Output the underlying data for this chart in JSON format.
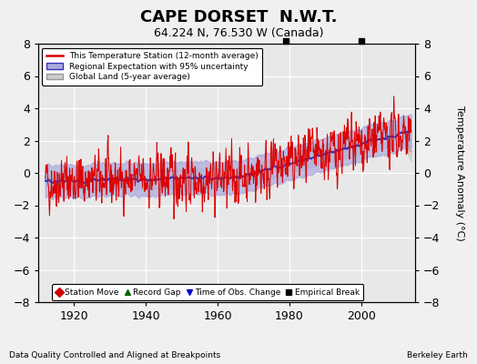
{
  "title": "CAPE DORSET  N.W.T.",
  "subtitle": "64.224 N, 76.530 W (Canada)",
  "xlabel_bottom": "Data Quality Controlled and Aligned at Breakpoints",
  "xlabel_right": "Berkeley Earth",
  "ylabel": "Temperature Anomaly (°C)",
  "ylim": [
    -8,
    8
  ],
  "xlim": [
    1910,
    2015
  ],
  "xticks": [
    1920,
    1940,
    1960,
    1980,
    2000
  ],
  "yticks": [
    -8,
    -6,
    -4,
    -2,
    0,
    2,
    4,
    6,
    8
  ],
  "bg_color": "#f0f0f0",
  "plot_bg_color": "#e8e8e8",
  "grid_color": "#ffffff",
  "red_color": "#dd0000",
  "blue_color": "#3333bb",
  "blue_fill_color": "#aaaadd",
  "gray_color": "#999999",
  "gray_fill_color": "#cccccc",
  "empirical_break_years": [
    1979,
    2000
  ],
  "legend_labels": [
    "This Temperature Station (12-month average)",
    "Regional Expectation with 95% uncertainty",
    "Global Land (5-year average)"
  ],
  "bottom_legend": [
    {
      "marker": "D",
      "color": "#cc0000",
      "label": "Station Move"
    },
    {
      "marker": "^",
      "color": "#006600",
      "label": "Record Gap"
    },
    {
      "marker": "v",
      "color": "#0000cc",
      "label": "Time of Obs. Change"
    },
    {
      "marker": "s",
      "color": "#000000",
      "label": "Empirical Break"
    }
  ]
}
